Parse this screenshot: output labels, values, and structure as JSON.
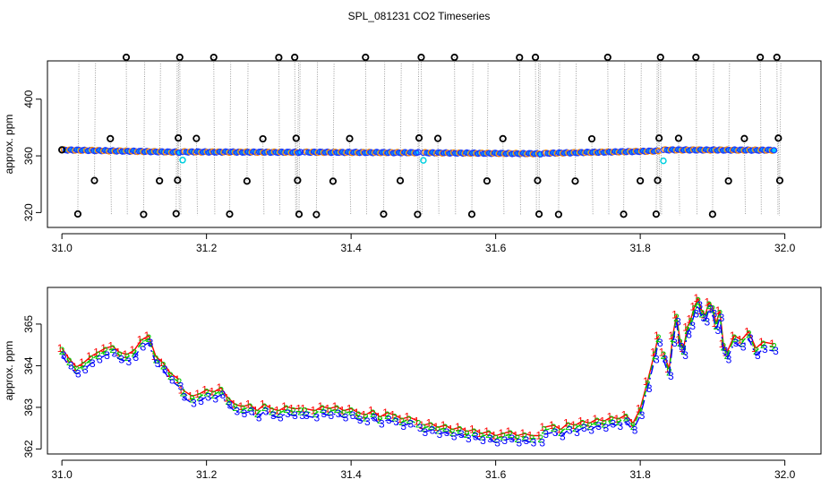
{
  "title": "SPL_081231  CO2 Timeseries",
  "chart_data": [
    {
      "type": "scatter",
      "ylabel": "approx. ppm",
      "xlim": [
        30.98,
        32.05
      ],
      "ylim": [
        309.5,
        427
      ],
      "xticks": [
        31.0,
        31.2,
        31.4,
        31.6,
        31.8,
        32.0
      ],
      "xtick_labels": [
        "31.0",
        "31.2",
        "31.4",
        "31.6",
        "31.8",
        "32.0"
      ],
      "yticks": [
        320,
        360,
        400
      ],
      "ytick_labels": [
        "320",
        "360",
        "400"
      ],
      "baseline_segments": [
        {
          "x0": 31.0,
          "x1": 31.162,
          "y0": 364.2,
          "y1": 362.6
        },
        {
          "x0": 31.167,
          "x1": 31.33,
          "y0": 362.8,
          "y1": 362.5
        },
        {
          "x0": 31.336,
          "x1": 31.493,
          "y0": 362.6,
          "y1": 362.2
        },
        {
          "x0": 31.5,
          "x1": 31.662,
          "y0": 362.2,
          "y1": 361.5
        },
        {
          "x0": 31.667,
          "x1": 31.825,
          "y0": 361.8,
          "y1": 363.4
        },
        {
          "x0": 31.832,
          "x1": 31.985,
          "y0": 364.2,
          "y1": 364.0
        }
      ],
      "outliers_x": [
        31.0,
        31.022,
        31.045,
        31.067,
        31.089,
        31.113,
        31.135,
        31.158,
        31.16,
        31.161,
        31.163,
        31.186,
        31.21,
        31.232,
        31.256,
        31.278,
        31.3,
        31.322,
        31.324,
        31.326,
        31.328,
        31.352,
        31.375,
        31.398,
        31.42,
        31.445,
        31.468,
        31.492,
        31.494,
        31.497,
        31.52,
        31.543,
        31.567,
        31.588,
        31.61,
        31.633,
        31.655,
        31.658,
        31.66,
        31.687,
        31.71,
        31.733,
        31.755,
        31.777,
        31.8,
        31.822,
        31.824,
        31.826,
        31.828,
        31.853,
        31.877,
        31.9,
        31.922,
        31.944,
        31.966,
        31.989,
        31.991,
        31.993
      ],
      "outliers_y": [
        364.2,
        319.0,
        342.6,
        372.1,
        429.8,
        318.7,
        342.4,
        319.2,
        342.8,
        372.6,
        429.7,
        372.3,
        429.5,
        318.9,
        342.2,
        372.0,
        429.4,
        429.6,
        372.4,
        342.7,
        318.8,
        318.6,
        342.1,
        372.2,
        429.8,
        318.9,
        342.5,
        318.7,
        372.6,
        429.9,
        372.3,
        429.6,
        318.8,
        342.3,
        372.1,
        429.4,
        429.7,
        342.6,
        318.9,
        318.7,
        342.2,
        372.0,
        429.6,
        318.8,
        342.4,
        318.9,
        342.7,
        372.5,
        429.8,
        372.4,
        429.7,
        318.8,
        342.3,
        372.2,
        429.6,
        429.8,
        372.5,
        342.6
      ],
      "cyan_points_x": [
        31.167,
        31.5,
        31.832
      ],
      "cyan_points_y": [
        357.0,
        356.8,
        356.5
      ]
    },
    {
      "type": "line",
      "ylabel": "approx. ppm",
      "xlim": [
        30.98,
        32.05
      ],
      "ylim": [
        361.88,
        365.88
      ],
      "xticks": [
        31.0,
        31.2,
        31.4,
        31.6,
        31.8,
        32.0
      ],
      "xtick_labels": [
        "31.0",
        "31.2",
        "31.4",
        "31.6",
        "31.8",
        "32.0"
      ],
      "yticks": [
        362,
        363,
        364,
        365
      ],
      "ytick_labels": [
        "362",
        "363",
        "364",
        "365"
      ],
      "series": [
        {
          "name": "1",
          "color": "#ff0000",
          "dash": "",
          "offset": 0.12
        },
        {
          "name": "2",
          "color": "#00cc00",
          "dash": "6,4",
          "offset": 0.05
        },
        {
          "name": "3",
          "color": "#0000ff",
          "dash": "10,4,2,4",
          "offset": -0.05
        }
      ],
      "segments": [
        {
          "x": [
            31.0,
            31.01,
            31.02,
            31.03,
            31.04,
            31.05,
            31.06,
            31.07,
            31.08,
            31.09,
            31.1,
            31.11,
            31.12,
            31.13,
            31.14,
            31.15,
            31.162
          ],
          "y": [
            364.3,
            364.05,
            363.85,
            363.95,
            364.1,
            364.2,
            364.3,
            364.35,
            364.2,
            364.15,
            364.25,
            364.5,
            364.6,
            364.1,
            363.95,
            363.7,
            363.55
          ]
        },
        {
          "x": [
            31.167,
            31.18,
            31.19,
            31.2,
            31.21,
            31.22,
            31.23,
            31.24,
            31.25,
            31.26,
            31.27,
            31.28,
            31.29,
            31.3,
            31.31,
            31.32,
            31.33
          ],
          "y": [
            363.3,
            363.15,
            363.2,
            363.3,
            363.25,
            363.35,
            363.1,
            362.95,
            362.9,
            362.95,
            362.8,
            362.95,
            362.85,
            362.8,
            362.9,
            362.85,
            362.85
          ]
        },
        {
          "x": [
            31.336,
            31.35,
            31.36,
            31.37,
            31.38,
            31.39,
            31.4,
            31.41,
            31.42,
            31.43,
            31.44,
            31.45,
            31.46,
            31.47,
            31.48,
            31.493
          ],
          "y": [
            362.85,
            362.8,
            362.9,
            362.85,
            362.9,
            362.8,
            362.85,
            362.75,
            362.7,
            362.8,
            362.65,
            362.75,
            362.7,
            362.6,
            362.65,
            362.55
          ]
        },
        {
          "x": [
            31.5,
            31.51,
            31.52,
            31.53,
            31.54,
            31.55,
            31.56,
            31.57,
            31.58,
            31.59,
            31.6,
            31.61,
            31.62,
            31.63,
            31.64,
            31.65,
            31.662
          ],
          "y": [
            362.45,
            362.5,
            362.4,
            362.45,
            362.35,
            362.4,
            362.3,
            362.35,
            362.25,
            362.3,
            362.2,
            362.25,
            362.3,
            362.2,
            362.25,
            362.2,
            362.2
          ]
        },
        {
          "x": [
            31.667,
            31.68,
            31.69,
            31.7,
            31.71,
            31.72,
            31.73,
            31.74,
            31.75,
            31.76,
            31.77,
            31.78,
            31.79,
            31.8,
            31.81,
            31.82,
            31.825
          ],
          "y": [
            362.4,
            362.45,
            362.35,
            362.5,
            362.45,
            362.55,
            362.5,
            362.6,
            362.55,
            362.65,
            362.6,
            362.7,
            362.5,
            362.85,
            363.5,
            364.2,
            364.6
          ]
        },
        {
          "x": [
            31.832,
            31.84,
            31.845,
            31.85,
            31.855,
            31.86,
            31.865,
            31.87,
            31.875,
            31.88,
            31.885,
            31.89,
            31.895,
            31.9,
            31.905,
            31.91,
            31.915,
            31.92,
            31.93,
            31.94,
            31.95,
            31.96,
            31.97,
            31.985
          ],
          "y": [
            364.2,
            363.8,
            364.6,
            365.1,
            364.5,
            364.3,
            364.8,
            365.0,
            365.3,
            365.5,
            365.2,
            365.1,
            365.4,
            365.3,
            364.9,
            365.2,
            364.4,
            364.2,
            364.6,
            364.5,
            364.7,
            364.3,
            364.45,
            364.4
          ]
        }
      ]
    }
  ]
}
